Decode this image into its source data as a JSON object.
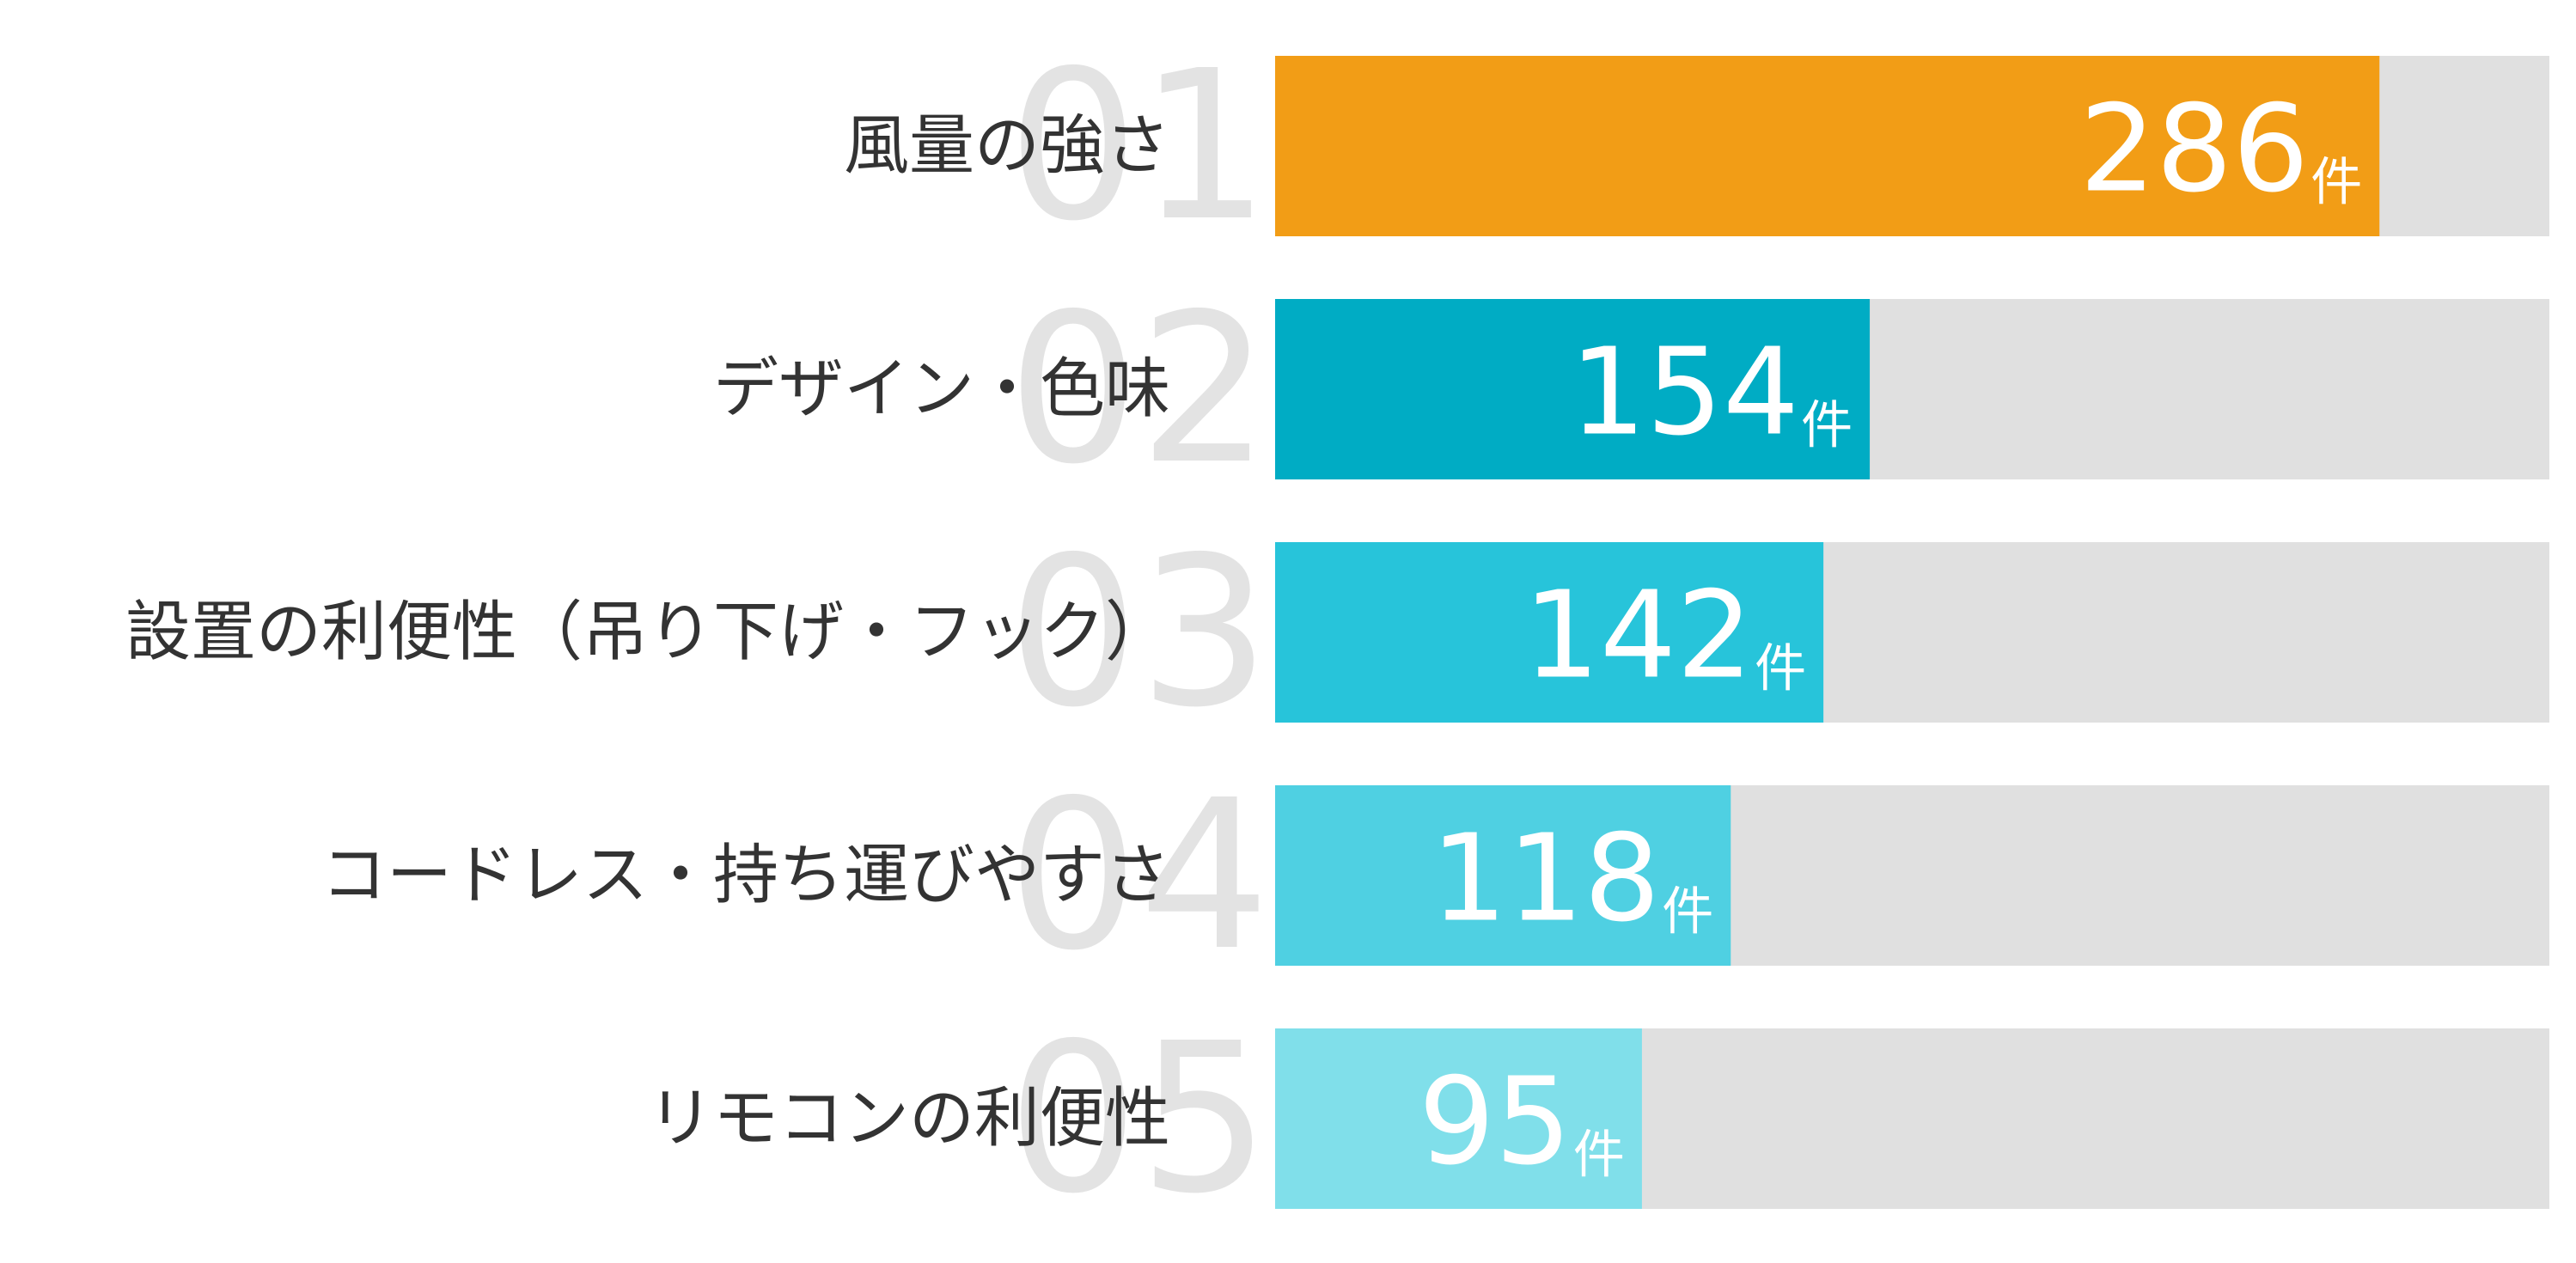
{
  "chart_data": {
    "type": "bar",
    "orientation": "horizontal",
    "ranks": [
      "01",
      "02",
      "03",
      "04",
      "05"
    ],
    "categories": [
      "風量の強さ",
      "デザイン・色味",
      "設置の利便性（吊り下げ・フック）",
      "コードレス・持ち運びやすさ",
      "リモコンの利便性"
    ],
    "values": [
      286,
      154,
      142,
      118,
      95
    ],
    "unit": "件",
    "colors": [
      "#f29d16",
      "#00acc4",
      "#27c4da",
      "#4fd0e2",
      "#80dfea"
    ],
    "track_color": "#e0e0e0",
    "xlim": [
      0,
      330
    ]
  }
}
